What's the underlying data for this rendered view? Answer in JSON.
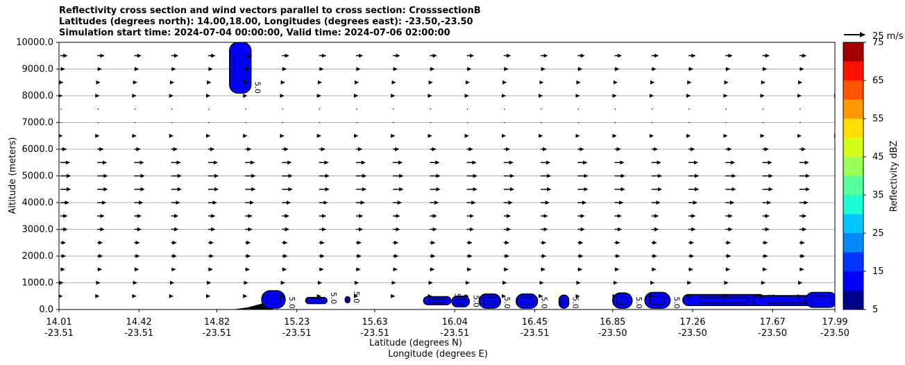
{
  "titles": {
    "line1": "Reflectivity cross section and wind vectors parallel to cross section: CrosssectionB",
    "line2": "Latitudes (degrees north): 14.00,18.00, Longitudes (degrees east): -23.50,-23.50",
    "line3": "Simulation start time: 2024-07-04 00:00:00, Valid time: 2024-07-06 02:00:00"
  },
  "chart_data": {
    "type": "contour_quiver",
    "title": "Reflectivity cross section and wind vectors parallel to cross section: CrosssectionB",
    "ylabel": "Altitude (meters)",
    "xlabel_lat": "Latitude (degrees N)",
    "xlabel_lon": "Longitude (degrees E)",
    "xlim": [
      14.01,
      17.99
    ],
    "ylim": [
      0,
      10000
    ],
    "grid": "horizontal",
    "x_ticks": [
      {
        "lat": 14.01,
        "lat_label": "14.01",
        "lon_label": "-23.51"
      },
      {
        "lat": 14.42,
        "lat_label": "14.42",
        "lon_label": "-23.51"
      },
      {
        "lat": 14.82,
        "lat_label": "14.82",
        "lon_label": "-23.51"
      },
      {
        "lat": 15.23,
        "lat_label": "15.23",
        "lon_label": "-23.51"
      },
      {
        "lat": 15.63,
        "lat_label": "15.63",
        "lon_label": "-23.51"
      },
      {
        "lat": 16.04,
        "lat_label": "16.04",
        "lon_label": "-23.51"
      },
      {
        "lat": 16.45,
        "lat_label": "16.45",
        "lon_label": "-23.51"
      },
      {
        "lat": 16.85,
        "lat_label": "16.85",
        "lon_label": "-23.50"
      },
      {
        "lat": 17.26,
        "lat_label": "17.26",
        "lon_label": "-23.50"
      },
      {
        "lat": 17.67,
        "lat_label": "17.67",
        "lon_label": "-23.50"
      },
      {
        "lat": 17.99,
        "lat_label": "17.99",
        "lon_label": "-23.50"
      }
    ],
    "y_ticks": [
      0,
      1000,
      2000,
      3000,
      4000,
      5000,
      6000,
      7000,
      8000,
      9000,
      10000
    ],
    "y_tick_labels": [
      "0.0",
      "1000.0",
      "2000.0",
      "3000.0",
      "4000.0",
      "5000.0",
      "6000.0",
      "7000.0",
      "8000.0",
      "9000.0",
      "10000.0"
    ],
    "colorbar": {
      "label": "Reflectivity dBZ",
      "levels": [
        5,
        10,
        15,
        20,
        25,
        30,
        35,
        40,
        45,
        50,
        55,
        60,
        65,
        70,
        75
      ],
      "tick_labels": [
        "5",
        "15",
        "25",
        "35",
        "45",
        "55",
        "65",
        "75"
      ],
      "colors": [
        "#00008b",
        "#0000ff",
        "#0033ff",
        "#0088ff",
        "#00c4ff",
        "#1affd5",
        "#55ff9e",
        "#99ff59",
        "#d4ff1a",
        "#ffdd00",
        "#ff9900",
        "#ff5500",
        "#ff1100",
        "#a30000"
      ]
    },
    "quiver_key": {
      "label": "25 m/s",
      "speed": 25
    },
    "wind_rows": [
      {
        "alt": 9500,
        "speed": 8
      },
      {
        "alt": 9000,
        "speed": 5
      },
      {
        "alt": 8500,
        "speed": 3
      },
      {
        "alt": 8000,
        "speed": 2
      },
      {
        "alt": 7500,
        "speed": 1
      },
      {
        "alt": 7000,
        "speed": 1
      },
      {
        "alt": 6500,
        "speed": 2
      },
      {
        "alt": 6000,
        "speed": 7
      },
      {
        "alt": 5500,
        "speed": 11
      },
      {
        "alt": 5000,
        "speed": 12
      },
      {
        "alt": 4500,
        "speed": 12
      },
      {
        "alt": 4000,
        "speed": 10
      },
      {
        "alt": 3500,
        "speed": 8
      },
      {
        "alt": 3000,
        "speed": 8
      },
      {
        "alt": 2500,
        "speed": 6
      },
      {
        "alt": 2000,
        "speed": 6
      },
      {
        "alt": 1500,
        "speed": 5
      },
      {
        "alt": 1000,
        "speed": 3
      },
      {
        "alt": 500,
        "speed": 2
      }
    ],
    "contour_label": "5.0",
    "cells": [
      {
        "lat_center": 14.94,
        "lat_half": 0.055,
        "alt_bottom": 8100,
        "alt_top": 10000,
        "dbz": 10
      },
      {
        "lat_center": 15.11,
        "lat_half": 0.06,
        "alt_bottom": 50,
        "alt_top": 700,
        "dbz": 10
      },
      {
        "lat_center": 15.33,
        "lat_half": 0.055,
        "alt_bottom": 220,
        "alt_top": 450,
        "dbz": 10
      },
      {
        "lat_center": 15.49,
        "lat_half": 0.012,
        "alt_bottom": 250,
        "alt_top": 480,
        "dbz": 10
      },
      {
        "lat_center": 15.95,
        "lat_half": 0.07,
        "alt_bottom": 180,
        "alt_top": 480,
        "dbz": 10
      },
      {
        "lat_center": 16.07,
        "lat_half": 0.045,
        "alt_bottom": 100,
        "alt_top": 500,
        "dbz": 10
      },
      {
        "lat_center": 16.22,
        "lat_half": 0.055,
        "alt_bottom": 50,
        "alt_top": 580,
        "dbz": 10
      },
      {
        "lat_center": 16.41,
        "lat_half": 0.055,
        "alt_bottom": 50,
        "alt_top": 580,
        "dbz": 10
      },
      {
        "lat_center": 16.6,
        "lat_half": 0.025,
        "alt_bottom": 50,
        "alt_top": 540,
        "dbz": 10
      },
      {
        "lat_center": 16.9,
        "lat_half": 0.05,
        "alt_bottom": 50,
        "alt_top": 620,
        "dbz": 10
      },
      {
        "lat_center": 17.08,
        "lat_half": 0.065,
        "alt_bottom": 50,
        "alt_top": 640,
        "dbz": 10
      },
      {
        "lat_center": 17.42,
        "lat_half": 0.21,
        "alt_bottom": 150,
        "alt_top": 560,
        "dbz": 10
      },
      {
        "lat_center": 17.75,
        "lat_half": 0.18,
        "alt_bottom": 150,
        "alt_top": 520,
        "dbz": 10
      },
      {
        "lat_center": 17.92,
        "lat_half": 0.08,
        "alt_bottom": 80,
        "alt_top": 640,
        "dbz": 10
      }
    ],
    "terrain": [
      {
        "lat": 14.9,
        "alt": 0
      },
      {
        "lat": 14.98,
        "alt": 80
      },
      {
        "lat": 15.05,
        "alt": 220
      },
      {
        "lat": 15.09,
        "alt": 250
      },
      {
        "lat": 15.11,
        "alt": 0
      }
    ]
  }
}
